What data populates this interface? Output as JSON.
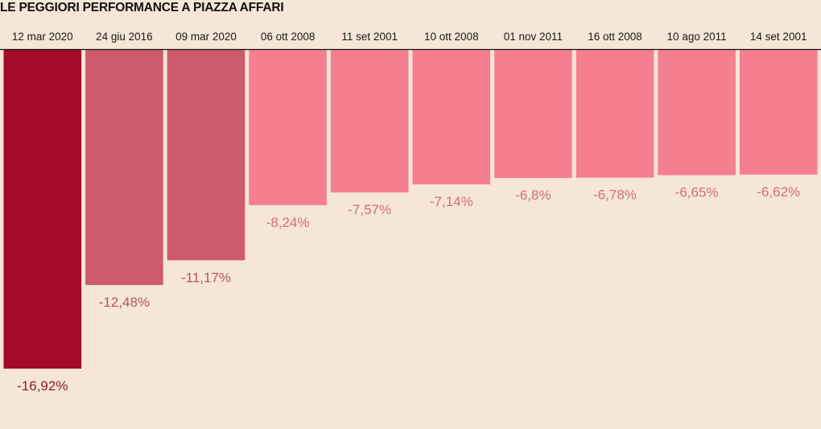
{
  "chart_data": {
    "type": "bar",
    "title": "LE PEGGIORI PERFORMANCE A PIAZZA AFFARI",
    "xlabel": "",
    "ylabel": "",
    "ylim": [
      -16.92,
      0
    ],
    "categories": [
      "12 mar 2020",
      "24 giu 2016",
      "09 mar 2020",
      "06 ott 2008",
      "11 set 2001",
      "10 ott 2008",
      "01 nov 2011",
      "16 ott 2008",
      "10 ago 2011",
      "14 set 2001"
    ],
    "values": [
      -16.92,
      -12.48,
      -11.17,
      -8.24,
      -7.57,
      -7.14,
      -6.8,
      -6.78,
      -6.65,
      -6.62
    ],
    "labels": [
      "-16,92%",
      "-12,48%",
      "-11,17%",
      "-8,24%",
      "-7,57%",
      "-7,14%",
      "-6,8%",
      "-6,78%",
      "-6,65%",
      "-6,62%"
    ],
    "bar_colors": [
      "#a30b29",
      "#cd5b6b",
      "#cd5b6b",
      "#f57f8f",
      "#f57f8f",
      "#f57f8f",
      "#f57f8f",
      "#f57f8f",
      "#f57f8f",
      "#f57f8f"
    ],
    "label_colors": [
      "#8f1a2e",
      "#b25565",
      "#b25565",
      "#d06e7c",
      "#d06e7c",
      "#d06e7c",
      "#d06e7c",
      "#d06e7c",
      "#d06e7c",
      "#d06e7c"
    ],
    "colors": {
      "axis": "#111111",
      "background": "#f5e6d7"
    }
  }
}
